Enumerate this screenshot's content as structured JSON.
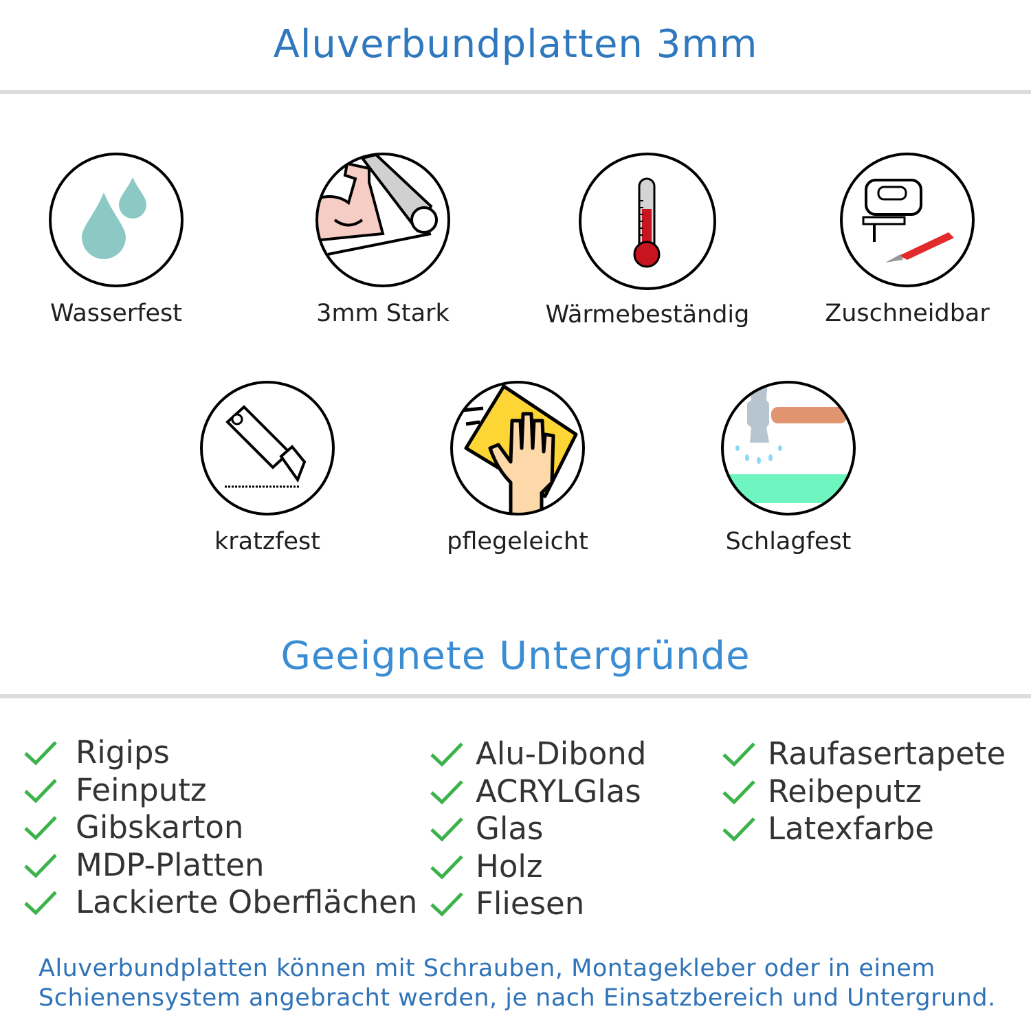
{
  "header": {
    "title": "Aluverbundplatten 3mm"
  },
  "features": [
    {
      "label": "Wasserfest",
      "icon": "water-drops-icon"
    },
    {
      "label": "3mm Stark",
      "icon": "strong-arm-icon"
    },
    {
      "label": "Wärmebeständig",
      "icon": "thermometer-icon"
    },
    {
      "label": "Zuschneidbar",
      "icon": "jigsaw-icon"
    },
    {
      "label": "kratzfest",
      "icon": "cutter-knife-icon"
    },
    {
      "label": "pflegeleicht",
      "icon": "cleaning-hand-icon"
    },
    {
      "label": "Schlagfest",
      "icon": "hammer-icon"
    }
  ],
  "surfaces": {
    "title": "Geeignete Untergründe",
    "columns": [
      [
        "Rigips",
        "Feinputz",
        "Gibskarton",
        "MDP-Platten",
        "Lackierte Oberflächen"
      ],
      [
        "Alu-Dibond",
        "ACRYLGlas",
        "Glas",
        "Holz",
        "Fliesen"
      ],
      [
        "Raufasertapete",
        "Reibeputz",
        "Latexfarbe"
      ]
    ],
    "check_color": "#3cb34a"
  },
  "footer": {
    "line1": "Aluverbundplatten können mit Schrauben, Montagekleber oder in einem",
    "line2": "Schienensystem angebracht werden, je nach Einsatzbereich und Untergrund."
  },
  "colors": {
    "title": "#2f78be",
    "subtitle": "#3a8cd3",
    "footer": "#2f73b8"
  }
}
